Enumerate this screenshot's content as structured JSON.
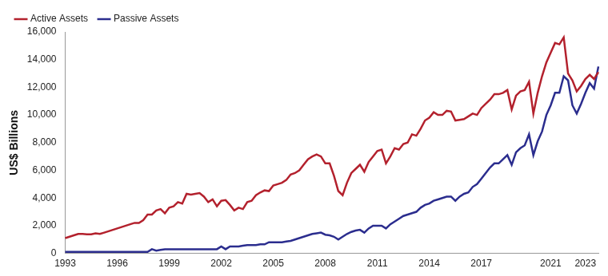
{
  "chart_data": {
    "type": "line",
    "y_label": "US$ Billions",
    "categories": [
      "1993",
      null,
      null,
      null,
      null,
      null,
      null,
      null,
      null,
      null,
      null,
      null,
      "1996",
      null,
      null,
      null,
      null,
      null,
      null,
      null,
      null,
      null,
      null,
      null,
      "1999",
      null,
      null,
      null,
      null,
      null,
      null,
      null,
      null,
      null,
      null,
      null,
      "2002",
      null,
      null,
      null,
      null,
      null,
      null,
      null,
      null,
      null,
      null,
      null,
      "2005",
      null,
      null,
      null,
      null,
      null,
      null,
      null,
      null,
      null,
      null,
      null,
      "2008",
      null,
      null,
      null,
      null,
      null,
      null,
      null,
      null,
      null,
      null,
      null,
      "2011",
      null,
      null,
      null,
      null,
      null,
      null,
      null,
      null,
      null,
      null,
      null,
      "2014",
      null,
      null,
      null,
      null,
      null,
      null,
      null,
      null,
      null,
      null,
      null,
      "2017",
      null,
      null,
      null,
      null,
      null,
      null,
      null,
      null,
      null,
      null,
      null,
      null,
      null,
      null,
      null,
      "2021",
      null,
      null,
      null,
      null,
      null,
      null,
      null,
      "2023",
      null,
      null,
      null
    ],
    "series": [
      {
        "name": "Active Assets",
        "color": "#b3212d",
        "values": [
          1100,
          1200,
          1300,
          1400,
          1400,
          1380,
          1370,
          1450,
          1400,
          1500,
          1600,
          1700,
          1800,
          1900,
          2000,
          2100,
          2200,
          2200,
          2400,
          2800,
          2800,
          3100,
          3200,
          2900,
          3300,
          3400,
          3700,
          3600,
          4300,
          4250,
          4300,
          4350,
          4100,
          3700,
          3900,
          3400,
          3800,
          3850,
          3500,
          3100,
          3300,
          3200,
          3700,
          3800,
          4200,
          4400,
          4550,
          4500,
          4900,
          5000,
          5100,
          5300,
          5700,
          5800,
          6000,
          6400,
          6800,
          7000,
          7150,
          7000,
          6500,
          6500,
          5600,
          4500,
          4200,
          5100,
          5800,
          6100,
          6400,
          5900,
          6600,
          7000,
          7400,
          7500,
          6500,
          7000,
          7600,
          7500,
          7900,
          8000,
          8600,
          8500,
          9000,
          9600,
          9800,
          10200,
          10000,
          10000,
          10300,
          10250,
          9600,
          9650,
          9700,
          9900,
          10100,
          10000,
          10500,
          10800,
          11100,
          11500,
          11500,
          11600,
          11800,
          10400,
          11400,
          11700,
          11800,
          12400,
          10100,
          11600,
          12800,
          13800,
          14500,
          15200,
          15100,
          15600,
          13000,
          12500,
          11700,
          12100,
          12600,
          12900,
          12600,
          13100
        ]
      },
      {
        "name": "Passive Assets",
        "color": "#2b2d8e",
        "values": [
          100,
          100,
          100,
          100,
          100,
          100,
          100,
          100,
          100,
          100,
          100,
          100,
          100,
          100,
          100,
          100,
          100,
          100,
          100,
          100,
          300,
          200,
          250,
          300,
          300,
          300,
          300,
          300,
          300,
          300,
          300,
          300,
          300,
          300,
          300,
          300,
          500,
          300,
          500,
          500,
          500,
          550,
          600,
          600,
          600,
          650,
          650,
          800,
          800,
          800,
          800,
          850,
          900,
          1000,
          1100,
          1200,
          1300,
          1400,
          1450,
          1500,
          1350,
          1300,
          1200,
          1000,
          1200,
          1400,
          1550,
          1650,
          1700,
          1500,
          1800,
          2000,
          2000,
          2000,
          1800,
          2100,
          2300,
          2500,
          2700,
          2800,
          2900,
          3000,
          3300,
          3500,
          3600,
          3800,
          3900,
          4000,
          4100,
          4100,
          3800,
          4100,
          4300,
          4400,
          4800,
          5000,
          5400,
          5800,
          6200,
          6500,
          6500,
          6800,
          7100,
          6400,
          7300,
          7600,
          7800,
          8600,
          7100,
          8100,
          8800,
          10000,
          10700,
          11600,
          11600,
          12800,
          12500,
          10700,
          10100,
          10800,
          11600,
          12300,
          11900,
          13500
        ]
      }
    ],
    "ylim": [
      0,
      16000
    ],
    "yticks": [
      0,
      {
        "value": 2000,
        "label": "2,000"
      },
      {
        "value": 4000,
        "label": "4,000"
      },
      {
        "value": 6000,
        "label": "6,000"
      },
      {
        "value": 8000,
        "label": "8,000"
      },
      {
        "value": 10000,
        "label": "10,000"
      },
      {
        "value": 12000,
        "label": "12,000"
      },
      {
        "value": 14000,
        "label": "14,000"
      },
      {
        "value": 16000,
        "label": "16,000"
      }
    ],
    "grid": false,
    "legend": "top-left"
  }
}
